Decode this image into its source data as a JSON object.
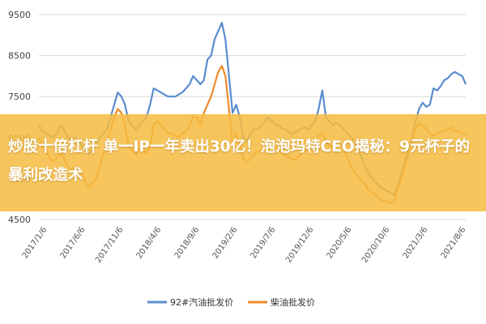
{
  "chart_data": {
    "type": "line",
    "y_ticks": [
      4500,
      5500,
      6500,
      7500,
      8500,
      9500
    ],
    "ylim": [
      4500,
      9500
    ],
    "grid": "horizontal",
    "legend_position": "bottom",
    "x_tick_labels": [
      "2017/1/6",
      "2017/6/6",
      "2017/11/6",
      "2018/4/6",
      "2018/9/6",
      "2019/2/6",
      "2019/7/6",
      "2019/12/6",
      "2020/5/6",
      "2020/10/6",
      "2021/3/6",
      "2021/8/6"
    ],
    "series": [
      {
        "name": "92#汽油批发价",
        "color": "#5b8ccf",
        "values": [
          6800,
          6650,
          6600,
          6550,
          6500,
          6600,
          6800,
          6700,
          6500,
          6450,
          6500,
          6400,
          6300,
          6200,
          6100,
          6200,
          6350,
          6500,
          6600,
          6700,
          7000,
          7300,
          7600,
          7500,
          7300,
          6900,
          6800,
          6700,
          6800,
          6900,
          7000,
          7300,
          7700,
          7650,
          7600,
          7550,
          7500,
          7500,
          7500,
          7550,
          7600,
          7700,
          7800,
          8000,
          7900,
          7800,
          7900,
          8400,
          8500,
          8900,
          9100,
          9300,
          8900,
          8000,
          7100,
          7300,
          7000,
          6500,
          6400,
          6600,
          6700,
          6700,
          6800,
          6900,
          7000,
          6900,
          6800,
          6800,
          6700,
          6700,
          6600,
          6600,
          6650,
          6700,
          6750,
          6700,
          6800,
          6900,
          7200,
          7650,
          7000,
          6900,
          6800,
          6850,
          6800,
          6700,
          6600,
          6500,
          6400,
          6200,
          6000,
          5800,
          5600,
          5500,
          5400,
          5300,
          5250,
          5200,
          5150,
          5100,
          5300,
          5600,
          5900,
          6200,
          6500,
          6900,
          7200,
          7350,
          7250,
          7300,
          7700,
          7650,
          7750,
          7900,
          7950,
          8050,
          8100,
          8050,
          8000,
          7800
        ]
      },
      {
        "name": "柴油批发价",
        "color": "#ee8a2b",
        "values": [
          6500,
          6300,
          6200,
          6000,
          5900,
          6000,
          6100,
          6000,
          5800,
          5700,
          5800,
          5700,
          5600,
          5400,
          5300,
          5400,
          5500,
          5800,
          6100,
          6400,
          6700,
          7000,
          7200,
          7100,
          6800,
          6300,
          6200,
          6100,
          6200,
          6200,
          6100,
          6300,
          6800,
          6900,
          6800,
          6700,
          6600,
          6600,
          6550,
          6500,
          6600,
          6650,
          6800,
          7000,
          7000,
          6800,
          7100,
          7300,
          7500,
          7800,
          8100,
          8250,
          8000,
          7200,
          6400,
          6600,
          6300,
          6000,
          5900,
          6000,
          6100,
          6150,
          6200,
          6250,
          6400,
          6300,
          6200,
          6200,
          6100,
          6050,
          6000,
          5950,
          6000,
          6100,
          6200,
          6150,
          6300,
          6450,
          6550,
          6600,
          6400,
          6300,
          6250,
          6300,
          6350,
          6200,
          6000,
          5800,
          5650,
          5550,
          5450,
          5350,
          5200,
          5150,
          5100,
          5000,
          4950,
          4950,
          4900,
          4950,
          5250,
          5500,
          5800,
          6100,
          6400,
          6700,
          6850,
          6800,
          6700,
          6600,
          6550,
          6600,
          6650,
          6650,
          6700,
          6750,
          6650,
          6650,
          6600,
          6550
        ]
      }
    ]
  },
  "banner": {
    "text": "炒股十倍杠杆 单一IP一年卖出30亿！泡泡玛特CEO揭秘：9元杯子的暴利改造术"
  }
}
